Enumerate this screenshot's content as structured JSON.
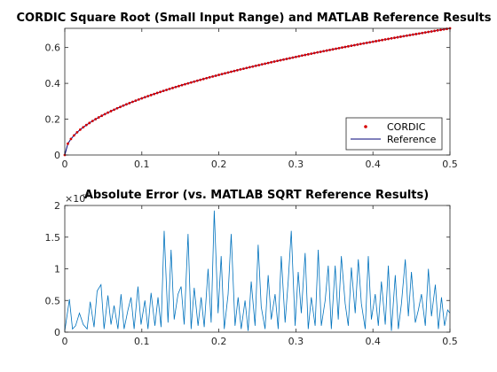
{
  "chart_data": [
    {
      "type": "line",
      "title": "CORDIC Square Root (Small Input Range) and MATLAB Reference Results",
      "xlim": [
        0,
        0.5
      ],
      "ylim": [
        0,
        0.7071
      ],
      "x_ticks": [
        "0",
        "0.1",
        "0.2",
        "0.3",
        "0.4",
        "0.5"
      ],
      "y_ticks": [
        "0",
        "0.2",
        "0.4",
        "0.6"
      ],
      "grid": false,
      "legend_position": "bottom-right",
      "x_range": [
        0,
        0.5
      ],
      "num_points": 126,
      "formula": "y = sqrt(x)",
      "series": [
        {
          "name": "CORDIC",
          "style": "red dot markers",
          "color": "#d60000"
        },
        {
          "name": "Reference",
          "style": "solid line",
          "color": "#00007a"
        }
      ]
    },
    {
      "type": "line",
      "title": "Absolute Error (vs. MATLAB SQRT Reference Results)",
      "xlim": [
        0,
        0.5
      ],
      "ylim": [
        0,
        2
      ],
      "y_multiplier": "×10",
      "y_exponent": "-4",
      "x_ticks": [
        "0",
        "0.1",
        "0.2",
        "0.3",
        "0.4",
        "0.5"
      ],
      "y_ticks": [
        "0",
        "0.5",
        "1",
        "1.5",
        "2"
      ],
      "grid": false,
      "series": [
        {
          "color": "#0072bd",
          "x": [
            0.0,
            0.006,
            0.01,
            0.014,
            0.019,
            0.024,
            0.029,
            0.033,
            0.038,
            0.042,
            0.047,
            0.051,
            0.056,
            0.06,
            0.064,
            0.069,
            0.073,
            0.077,
            0.082,
            0.086,
            0.09,
            0.095,
            0.099,
            0.104,
            0.108,
            0.112,
            0.117,
            0.121,
            0.125,
            0.129,
            0.134,
            0.138,
            0.142,
            0.147,
            0.151,
            0.155,
            0.16,
            0.164,
            0.168,
            0.173,
            0.177,
            0.181,
            0.186,
            0.19,
            0.194,
            0.199,
            0.203,
            0.207,
            0.212,
            0.216,
            0.221,
            0.225,
            0.229,
            0.234,
            0.238,
            0.242,
            0.247,
            0.251,
            0.255,
            0.26,
            0.264,
            0.268,
            0.273,
            0.277,
            0.281,
            0.286,
            0.29,
            0.294,
            0.299,
            0.303,
            0.307,
            0.312,
            0.316,
            0.32,
            0.325,
            0.329,
            0.333,
            0.338,
            0.342,
            0.346,
            0.351,
            0.355,
            0.359,
            0.364,
            0.368,
            0.372,
            0.377,
            0.381,
            0.385,
            0.39,
            0.394,
            0.398,
            0.403,
            0.407,
            0.411,
            0.416,
            0.42,
            0.424,
            0.429,
            0.433,
            0.437,
            0.442,
            0.446,
            0.45,
            0.455,
            0.459,
            0.463,
            0.468,
            0.472,
            0.476,
            0.481,
            0.485,
            0.489,
            0.493,
            0.497,
            0.5
          ],
          "values": [
            0.02,
            0.52,
            0.05,
            0.1,
            0.3,
            0.12,
            0.05,
            0.48,
            0.08,
            0.65,
            0.75,
            0.05,
            0.58,
            0.12,
            0.42,
            0.05,
            0.6,
            0.05,
            0.35,
            0.55,
            0.05,
            0.72,
            0.12,
            0.5,
            0.05,
            0.62,
            0.1,
            0.55,
            0.08,
            1.6,
            0.15,
            1.3,
            0.2,
            0.6,
            0.72,
            0.12,
            1.55,
            0.05,
            0.7,
            0.1,
            0.55,
            0.08,
            1.0,
            0.15,
            1.92,
            0.3,
            1.2,
            0.05,
            0.6,
            1.55,
            0.1,
            0.55,
            0.05,
            0.5,
            0.02,
            0.8,
            0.1,
            1.38,
            0.4,
            0.05,
            0.9,
            0.2,
            0.6,
            0.05,
            1.2,
            0.15,
            0.8,
            1.6,
            0.1,
            0.95,
            0.3,
            1.25,
            0.05,
            0.55,
            0.1,
            1.3,
            0.1,
            0.5,
            1.05,
            0.05,
            1.05,
            0.2,
            1.2,
            0.45,
            0.1,
            1.02,
            0.3,
            1.15,
            0.45,
            0.05,
            1.2,
            0.2,
            0.6,
            0.1,
            0.8,
            0.12,
            1.05,
            0.02,
            0.9,
            0.05,
            0.45,
            1.15,
            0.25,
            0.95,
            0.15,
            0.35,
            0.6,
            0.1,
            1.0,
            0.25,
            0.75,
            0.05,
            0.55,
            0.1,
            0.35,
            0.3
          ]
        }
      ]
    }
  ]
}
